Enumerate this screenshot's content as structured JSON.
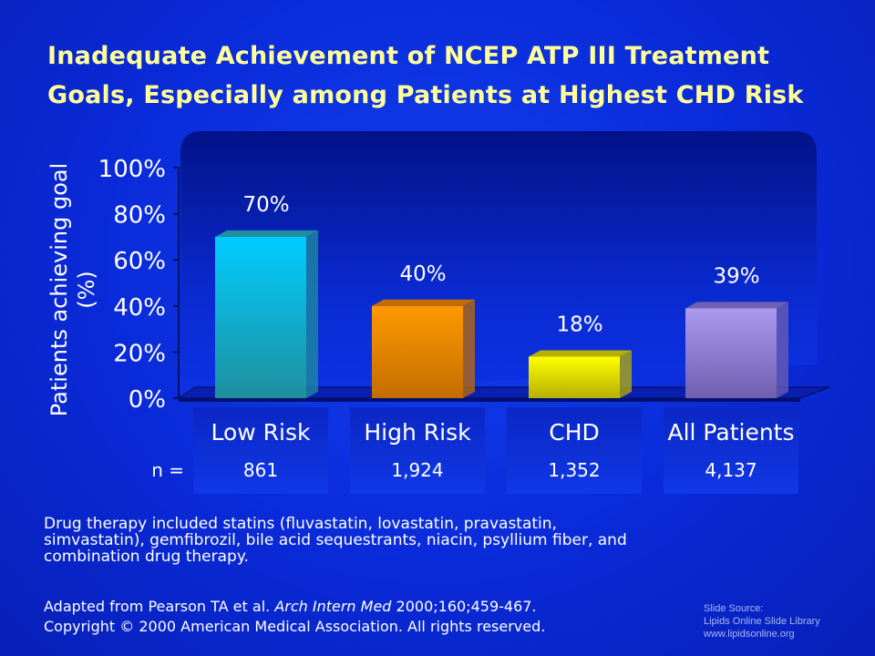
{
  "slide": {
    "title_line1": "Inadequate Achievement of NCEP ATP III Treatment",
    "title_line2": "Goals, Especially among Patients at Highest CHD Risk",
    "note_lines": [
      "Drug therapy included statins (fluvastatin, lovastatin, pravastatin,",
      "simvastatin), gemfibrozil, bile acid sequestrants, niacin, psyllium fiber, and",
      "combination drug therapy."
    ],
    "citation": {
      "prefix": "Adapted from Pearson TA et al. ",
      "journal": "Arch Intern Med",
      "suffix": " 2000;160;459-467.",
      "copyright": "Copyright © 2000 American Medical Association. All rights reserved."
    },
    "source_lines": [
      "Slide Source:",
      "Lipids Online Slide Library",
      "www.lipidsonline.org"
    ]
  },
  "chart_data": {
    "type": "bar",
    "ylabel_lines": [
      "Patients achieving goal",
      "(%)"
    ],
    "ylim": [
      0,
      100
    ],
    "yticks": [
      "0%",
      "20%",
      "40%",
      "60%",
      "80%",
      "100%"
    ],
    "categories": [
      "Low Risk",
      "High Risk",
      "CHD",
      "All Patients"
    ],
    "values": [
      70,
      40,
      18,
      39
    ],
    "value_labels": [
      "70%",
      "40%",
      "18%",
      "39%"
    ],
    "n_label": "n =",
    "n_values": [
      "861",
      "1,924",
      "1,352",
      "4,137"
    ],
    "bar_colors": [
      "#00ccff",
      "#ff9900",
      "#ffff00",
      "#aa99ee"
    ],
    "bar_dark_colors": [
      "#1f8f9e",
      "#c36d00",
      "#b8b000",
      "#6f5fb0"
    ]
  }
}
